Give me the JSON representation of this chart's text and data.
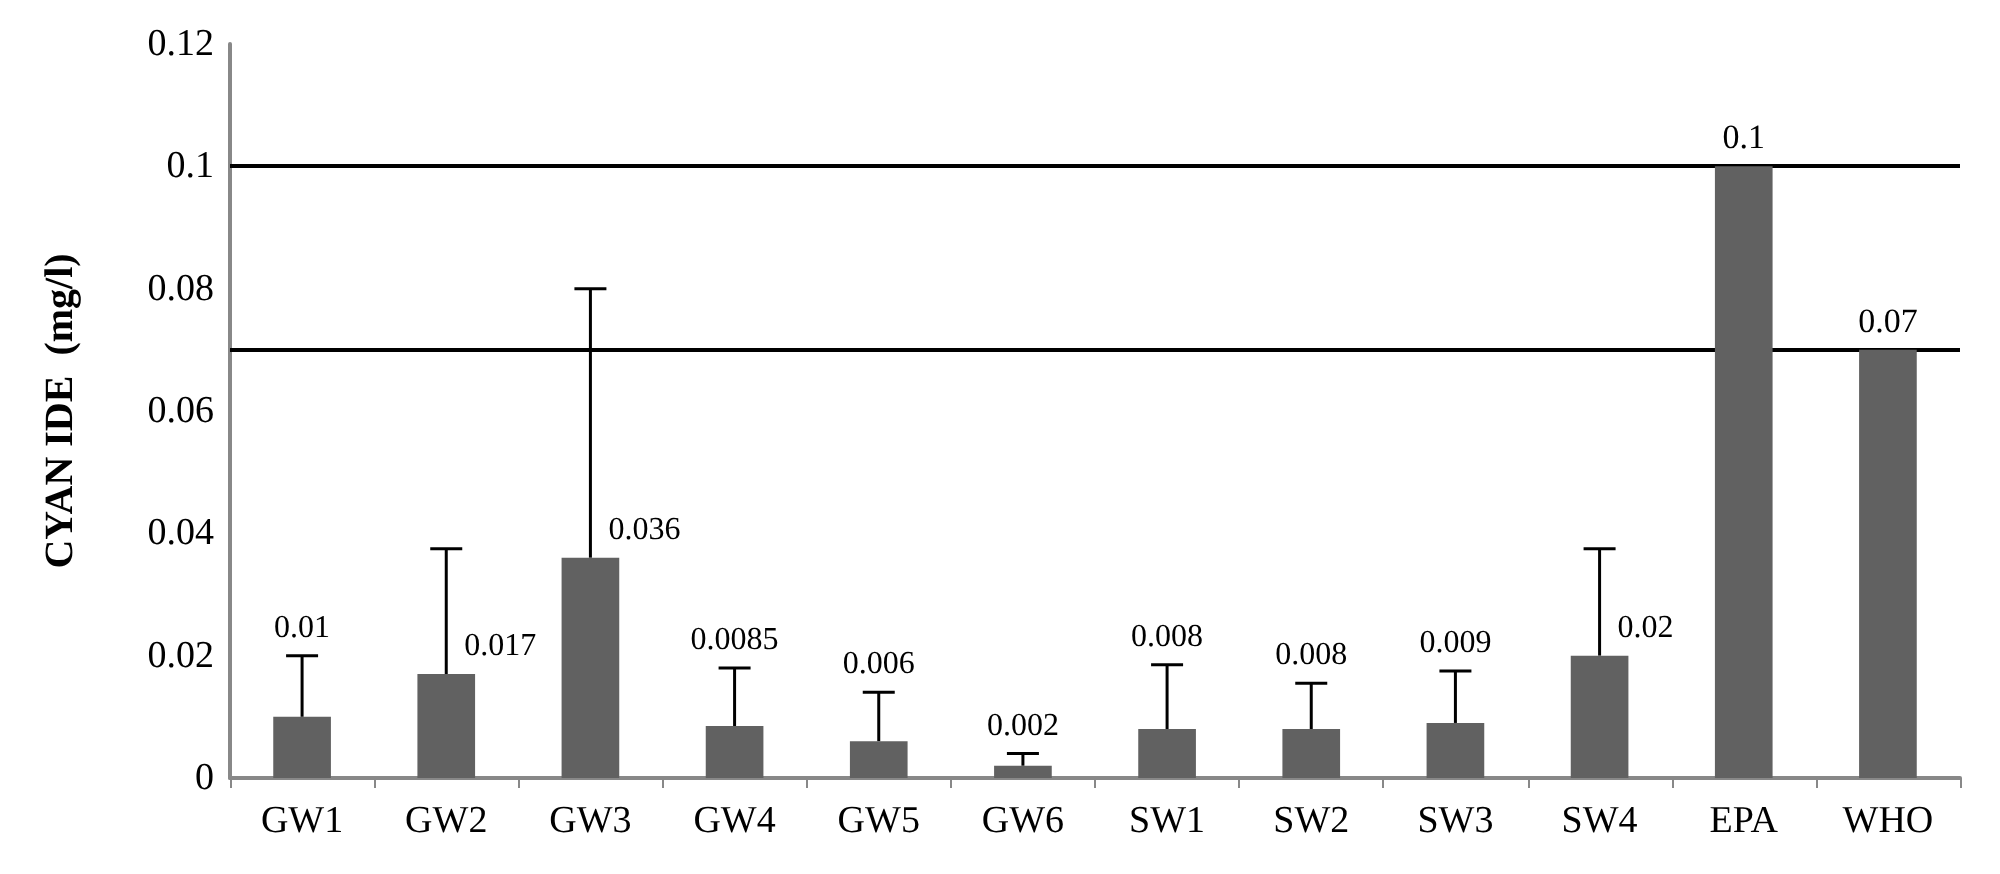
{
  "chart_data": {
    "type": "bar",
    "ylabel": "CYAN IDE  (mg/l)",
    "categories": [
      "GW1",
      "GW2",
      "GW3",
      "GW4",
      "GW5",
      "GW6",
      "SW1",
      "SW2",
      "SW3",
      "SW4",
      "EPA",
      "WHO"
    ],
    "values": [
      0.01,
      0.017,
      0.036,
      0.0085,
      0.006,
      0.002,
      0.008,
      0.008,
      0.009,
      0.02,
      0.1,
      0.07
    ],
    "errors": [
      [
        0.01,
        0.02
      ],
      [
        0.017,
        0.0375
      ],
      [
        0.036,
        0.08
      ],
      [
        0.0085,
        0.018
      ],
      [
        0.006,
        0.014
      ],
      [
        0.002,
        0.004
      ],
      [
        0.008,
        0.0185
      ],
      [
        0.008,
        0.0155
      ],
      [
        0.009,
        0.0175
      ],
      [
        0.02,
        0.0375
      ],
      null,
      null
    ],
    "color": "#616161",
    "data_labels": true,
    "ylim": [
      0,
      0.12
    ],
    "yticks": [
      0,
      0.02,
      0.04,
      0.06,
      0.08,
      0.1,
      0.12
    ],
    "grid": false,
    "ref_lines": [
      {
        "axis": "y",
        "value": 0.1,
        "color": "#000000"
      },
      {
        "axis": "y",
        "value": 0.07,
        "color": "#000000"
      }
    ]
  }
}
